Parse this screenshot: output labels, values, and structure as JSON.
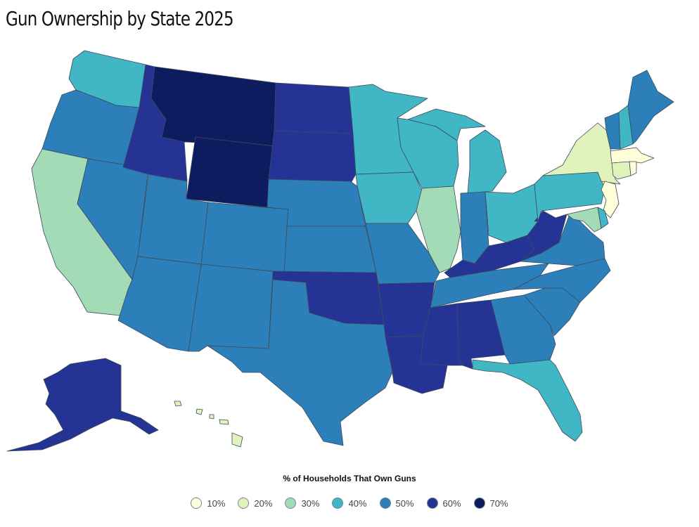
{
  "title": "Gun Ownership by State 2025",
  "legend": {
    "title": "% of Households That Own Guns",
    "items": [
      {
        "label": "10%",
        "color": "#ffffd9"
      },
      {
        "label": "20%",
        "color": "#e0f3bd"
      },
      {
        "label": "30%",
        "color": "#a3dbb6"
      },
      {
        "label": "40%",
        "color": "#41b6c4"
      },
      {
        "label": "50%",
        "color": "#2c7fb8"
      },
      {
        "label": "60%",
        "color": "#253494"
      },
      {
        "label": "70%",
        "color": "#0c1c5e"
      }
    ]
  },
  "states": {
    "WA": {
      "bin": "40%"
    },
    "OR": {
      "bin": "50%"
    },
    "CA": {
      "bin": "30%"
    },
    "NV": {
      "bin": "50%"
    },
    "ID": {
      "bin": "60%"
    },
    "MT": {
      "bin": "70%"
    },
    "WY": {
      "bin": "70%"
    },
    "UT": {
      "bin": "50%"
    },
    "AZ": {
      "bin": "50%"
    },
    "CO": {
      "bin": "50%"
    },
    "NM": {
      "bin": "50%"
    },
    "ND": {
      "bin": "60%"
    },
    "SD": {
      "bin": "60%"
    },
    "NE": {
      "bin": "50%"
    },
    "KS": {
      "bin": "50%"
    },
    "OK": {
      "bin": "60%"
    },
    "TX": {
      "bin": "50%"
    },
    "MN": {
      "bin": "40%"
    },
    "IA": {
      "bin": "40%"
    },
    "MO": {
      "bin": "50%"
    },
    "AR": {
      "bin": "60%"
    },
    "LA": {
      "bin": "60%"
    },
    "WI": {
      "bin": "40%"
    },
    "IL": {
      "bin": "30%"
    },
    "MI": {
      "bin": "40%"
    },
    "IN": {
      "bin": "50%"
    },
    "OH": {
      "bin": "40%"
    },
    "KY": {
      "bin": "60%"
    },
    "TN": {
      "bin": "50%"
    },
    "MS": {
      "bin": "60%"
    },
    "AL": {
      "bin": "60%"
    },
    "GA": {
      "bin": "50%"
    },
    "FL": {
      "bin": "40%"
    },
    "SC": {
      "bin": "50%"
    },
    "NC": {
      "bin": "50%"
    },
    "VA": {
      "bin": "50%"
    },
    "WV": {
      "bin": "60%"
    },
    "PA": {
      "bin": "40%"
    },
    "NY": {
      "bin": "20%"
    },
    "VT": {
      "bin": "50%"
    },
    "NH": {
      "bin": "40%"
    },
    "ME": {
      "bin": "50%"
    },
    "MA": {
      "bin": "10%"
    },
    "RI": {
      "bin": "10%"
    },
    "CT": {
      "bin": "20%"
    },
    "NJ": {
      "bin": "10%"
    },
    "DE": {
      "bin": "40%"
    },
    "MD": {
      "bin": "30%"
    },
    "AK": {
      "bin": "60%"
    },
    "HI": {
      "bin": "20%"
    }
  }
}
